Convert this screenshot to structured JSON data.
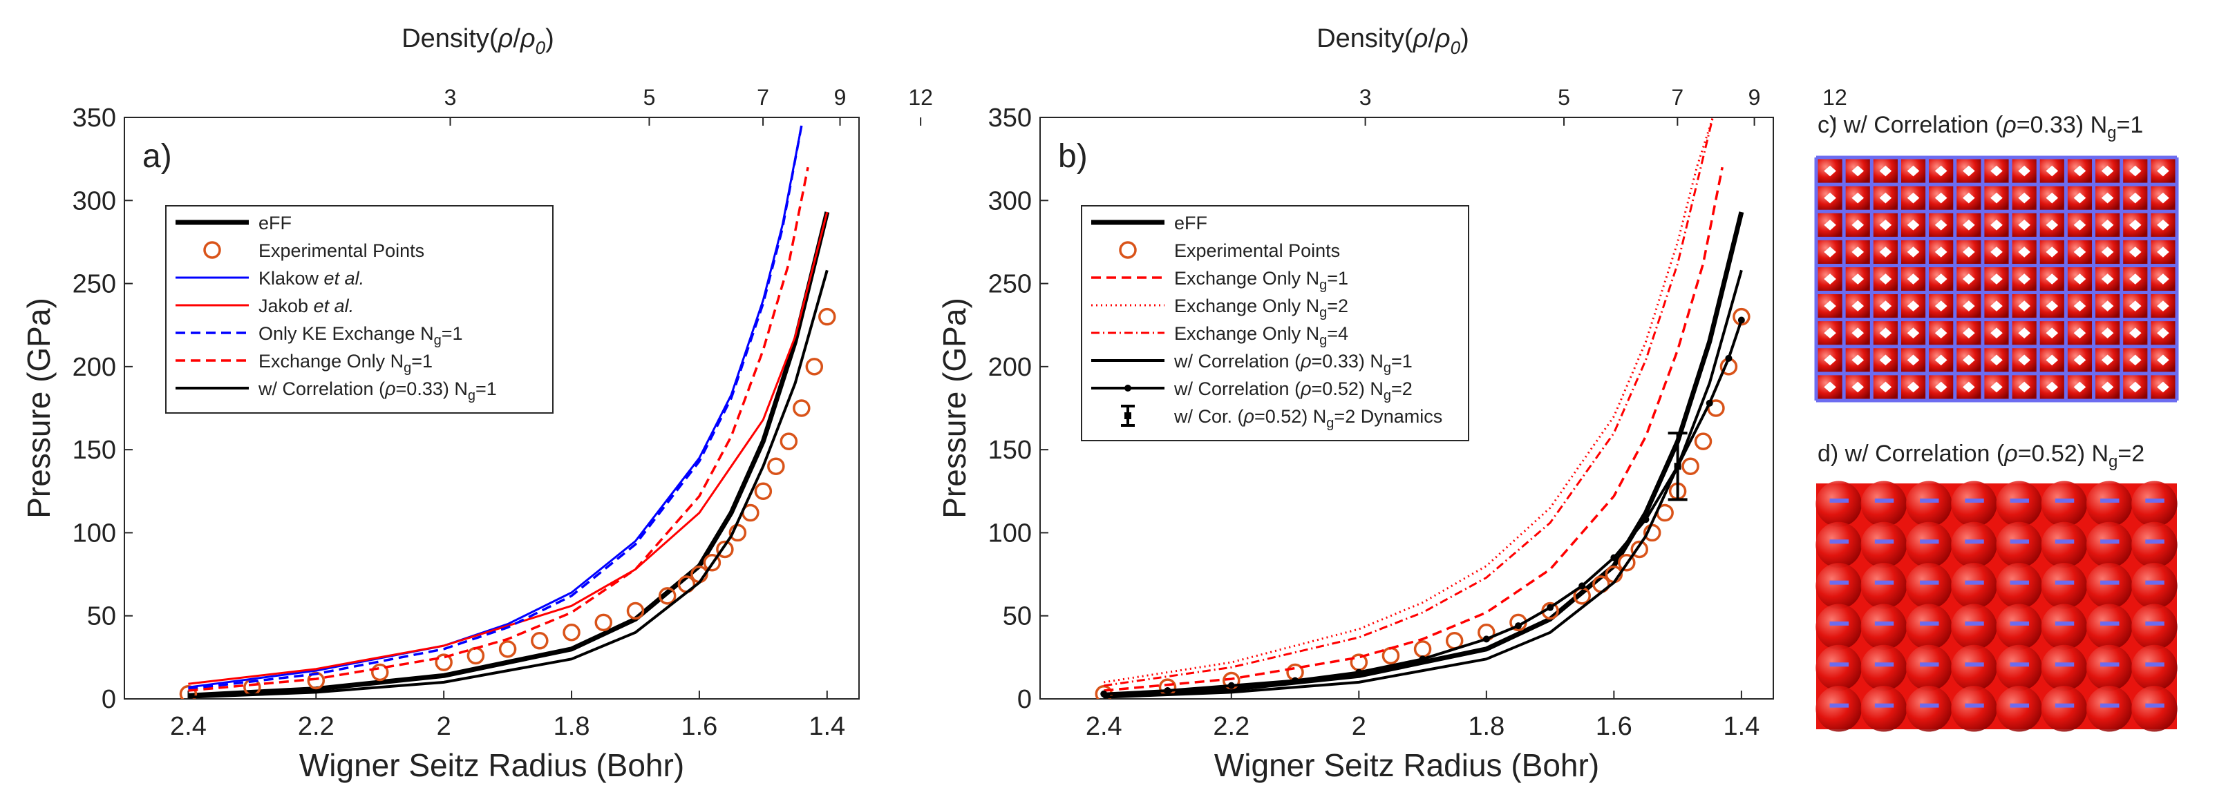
{
  "colors": {
    "black": "#000000",
    "orange": "#D95319",
    "blue": "#0000FF",
    "red": "#FF0000",
    "lattice_bg": "#E8140E",
    "grid_line": "#6C6CF0"
  },
  "chart_data": [
    {
      "type": "line",
      "panel_label": "a)",
      "xlabel": "Wigner Seitz Radius (Bohr)",
      "ylabel": "Pressure (GPa)",
      "top_xlabel": "Density(ρ/ρ0)",
      "top_xlabel_main": "Density(",
      "top_xlabel_rho": "ρ",
      "top_xlabel_rho0": "ρ",
      "top_xlabel_sub": "0",
      "top_xlabel_end": ")",
      "xlim": [
        2.5,
        1.35
      ],
      "ylim": [
        0,
        350
      ],
      "x_ticks": [
        2.4,
        2.2,
        2,
        1.8,
        1.6,
        1.4
      ],
      "x_tick_labels": [
        "2.4",
        "2.2",
        "2",
        "1.8",
        "1.6",
        "1.4"
      ],
      "y_ticks": [
        0,
        50,
        100,
        150,
        200,
        250,
        300,
        350
      ],
      "y_tick_labels": [
        "0",
        "50",
        "100",
        "150",
        "200",
        "250",
        "300",
        "350"
      ],
      "top_ticks": [
        3,
        5,
        7,
        9,
        12
      ],
      "top_tick_labels": [
        "3",
        "5",
        "7",
        "9",
        "12"
      ],
      "series": [
        {
          "name": "eFF",
          "style": "thick-black",
          "x": [
            2.4,
            2.2,
            2.0,
            1.8,
            1.7,
            1.6,
            1.55,
            1.5,
            1.45,
            1.4
          ],
          "y": [
            2,
            6,
            14,
            30,
            48,
            80,
            112,
            155,
            215,
            293
          ]
        },
        {
          "name": "Experimental Points",
          "style": "circle-orange",
          "x": [
            2.4,
            2.3,
            2.2,
            2.1,
            2.0,
            1.95,
            1.9,
            1.85,
            1.8,
            1.75,
            1.7,
            1.65,
            1.62,
            1.6,
            1.58,
            1.56,
            1.54,
            1.52,
            1.5,
            1.48,
            1.46,
            1.44,
            1.42,
            1.4
          ],
          "y": [
            3,
            7,
            11,
            16,
            22,
            26,
            30,
            35,
            40,
            46,
            53,
            62,
            69,
            75,
            82,
            90,
            100,
            112,
            125,
            140,
            155,
            175,
            200,
            230
          ]
        },
        {
          "name": "Klakow et al.",
          "name_main": "Klakow ",
          "name_italic": "et al.",
          "style": "solid-blue",
          "x": [
            2.4,
            2.2,
            2.0,
            1.9,
            1.8,
            1.7,
            1.6,
            1.55,
            1.5,
            1.47,
            1.44
          ],
          "y": [
            7,
            17,
            32,
            45,
            64,
            95,
            145,
            183,
            240,
            285,
            345
          ]
        },
        {
          "name": "Jakob et al.",
          "name_main": "Jakob ",
          "name_italic": "et al.",
          "style": "solid-red",
          "x": [
            2.4,
            2.2,
            2.0,
            1.8,
            1.7,
            1.6,
            1.5,
            1.45,
            1.4
          ],
          "y": [
            9,
            18,
            32,
            56,
            78,
            112,
            168,
            218,
            293
          ]
        },
        {
          "name": "Only KE Exchange Ng=1",
          "name_main": "Only KE Exchange N",
          "name_sub": "g",
          "name_end": "=1",
          "style": "dashed-blue",
          "x": [
            2.4,
            2.2,
            2.0,
            1.9,
            1.8,
            1.7,
            1.6,
            1.55,
            1.5,
            1.47,
            1.44
          ],
          "y": [
            6,
            15,
            30,
            43,
            62,
            93,
            143,
            181,
            238,
            283,
            345
          ]
        },
        {
          "name": "Exchange Only Ng=1",
          "name_main": "Exchange Only N",
          "name_sub": "g",
          "name_end": "=1",
          "style": "dashed-red",
          "x": [
            2.4,
            2.2,
            2.0,
            1.9,
            1.8,
            1.7,
            1.6,
            1.55,
            1.5,
            1.46,
            1.43
          ],
          "y": [
            5,
            12,
            25,
            36,
            52,
            78,
            122,
            158,
            210,
            262,
            320
          ]
        },
        {
          "name": "w/ Correlation (ρ=0.33) Ng=1",
          "name_main": "w/ Correlation (",
          "name_rho": "ρ",
          "name_mid": "=0.33) N",
          "name_sub": "g",
          "name_end": "=1",
          "style": "solid-black",
          "x": [
            2.4,
            2.2,
            2.0,
            1.8,
            1.7,
            1.6,
            1.55,
            1.5,
            1.45,
            1.4
          ],
          "y": [
            1,
            4,
            10,
            24,
            40,
            70,
            98,
            140,
            190,
            258
          ]
        }
      ]
    },
    {
      "type": "line",
      "panel_label": "b)",
      "xlabel": "Wigner Seitz Radius (Bohr)",
      "ylabel": "Pressure (GPa)",
      "top_xlabel": "Density(ρ/ρ0)",
      "top_xlabel_main": "Density(",
      "top_xlabel_rho": "ρ",
      "top_xlabel_rho0": "ρ",
      "top_xlabel_sub": "0",
      "top_xlabel_end": ")",
      "xlim": [
        2.5,
        1.35
      ],
      "ylim": [
        0,
        350
      ],
      "x_ticks": [
        2.4,
        2.2,
        2,
        1.8,
        1.6,
        1.4
      ],
      "x_tick_labels": [
        "2.4",
        "2.2",
        "2",
        "1.8",
        "1.6",
        "1.4"
      ],
      "y_ticks": [
        0,
        50,
        100,
        150,
        200,
        250,
        300,
        350
      ],
      "y_tick_labels": [
        "0",
        "50",
        "100",
        "150",
        "200",
        "250",
        "300",
        "350"
      ],
      "top_ticks": [
        3,
        5,
        7,
        9,
        12
      ],
      "top_tick_labels": [
        "3",
        "5",
        "7",
        "9",
        "12"
      ],
      "series": [
        {
          "name": "eFF",
          "style": "thick-black",
          "x": [
            2.4,
            2.2,
            2.0,
            1.8,
            1.7,
            1.6,
            1.55,
            1.5,
            1.45,
            1.4
          ],
          "y": [
            2,
            6,
            14,
            30,
            48,
            80,
            112,
            155,
            215,
            293
          ]
        },
        {
          "name": "Experimental Points",
          "style": "circle-orange",
          "x": [
            2.4,
            2.3,
            2.2,
            2.1,
            2.0,
            1.95,
            1.9,
            1.85,
            1.8,
            1.75,
            1.7,
            1.65,
            1.62,
            1.6,
            1.58,
            1.56,
            1.54,
            1.52,
            1.5,
            1.48,
            1.46,
            1.44,
            1.42,
            1.4
          ],
          "y": [
            3,
            7,
            11,
            16,
            22,
            26,
            30,
            35,
            40,
            46,
            53,
            62,
            69,
            75,
            82,
            90,
            100,
            112,
            125,
            140,
            155,
            175,
            200,
            230
          ]
        },
        {
          "name": "Exchange Only Ng=1",
          "name_main": "Exchange Only N",
          "name_sub": "g",
          "name_end": "=1",
          "style": "dashed-red",
          "x": [
            2.4,
            2.2,
            2.0,
            1.9,
            1.8,
            1.7,
            1.6,
            1.55,
            1.5,
            1.46,
            1.43
          ],
          "y": [
            5,
            12,
            25,
            36,
            52,
            78,
            122,
            158,
            210,
            262,
            320
          ]
        },
        {
          "name": "Exchange Only Ng=2",
          "name_main": "Exchange Only N",
          "name_sub": "g",
          "name_end": "=2",
          "style": "dotted-red",
          "x": [
            2.4,
            2.2,
            2.0,
            1.9,
            1.8,
            1.7,
            1.6,
            1.55,
            1.5,
            1.47,
            1.445
          ],
          "y": [
            10,
            22,
            42,
            58,
            80,
            115,
            170,
            215,
            275,
            320,
            350
          ]
        },
        {
          "name": "Exchange Only Ng=4",
          "name_main": "Exchange Only N",
          "name_sub": "g",
          "name_end": "=4",
          "style": "dashdot-red",
          "x": [
            2.4,
            2.2,
            2.0,
            1.9,
            1.8,
            1.7,
            1.6,
            1.55,
            1.5,
            1.47,
            1.445
          ],
          "y": [
            8,
            19,
            37,
            52,
            73,
            106,
            160,
            204,
            262,
            310,
            350
          ]
        },
        {
          "name": "w/ Correlation (ρ=0.33) Ng=1",
          "name_main": "w/ Correlation (",
          "name_rho": "ρ",
          "name_mid": "=0.33) N",
          "name_sub": "g",
          "name_end": "=1",
          "style": "solid-black",
          "x": [
            2.4,
            2.2,
            2.0,
            1.8,
            1.7,
            1.6,
            1.55,
            1.5,
            1.45,
            1.4
          ],
          "y": [
            1,
            4,
            10,
            24,
            40,
            70,
            98,
            140,
            190,
            258
          ]
        },
        {
          "name": "w/ Correlation (ρ=0.52) Ng=2",
          "name_main": "w/ Correlation (",
          "name_rho": "ρ",
          "name_mid": "=0.52) N",
          "name_sub": "g",
          "name_end": "=2",
          "style": "dotline-black",
          "x": [
            2.4,
            2.3,
            2.2,
            2.1,
            2.0,
            1.9,
            1.8,
            1.75,
            1.7,
            1.65,
            1.6,
            1.55,
            1.5,
            1.45,
            1.42,
            1.4
          ],
          "y": [
            3,
            5,
            8,
            11,
            16,
            24,
            36,
            44,
            55,
            68,
            85,
            108,
            140,
            178,
            205,
            228
          ]
        },
        {
          "name": "w/ Cor. (ρ=0.52) Ng=2 Dynamics",
          "name_main": "w/ Cor. (",
          "name_rho": "ρ",
          "name_mid": "=0.52) N",
          "name_sub": "g",
          "name_end": "=2 Dynamics",
          "style": "errorbar-black",
          "x": [
            1.5
          ],
          "y": [
            140
          ],
          "error": [
            20
          ]
        }
      ]
    }
  ],
  "lattice_panels": [
    {
      "title_main": "c) w/ Correlation (",
      "title_rho": "ρ",
      "title_mid": "=0.33) N",
      "title_sub": "g",
      "title_end": "=1",
      "style": "grid"
    },
    {
      "title_main": "d) w/ Correlation (",
      "title_rho": "ρ",
      "title_mid": "=0.52) N",
      "title_sub": "g",
      "title_end": "=2",
      "style": "dashes"
    }
  ]
}
